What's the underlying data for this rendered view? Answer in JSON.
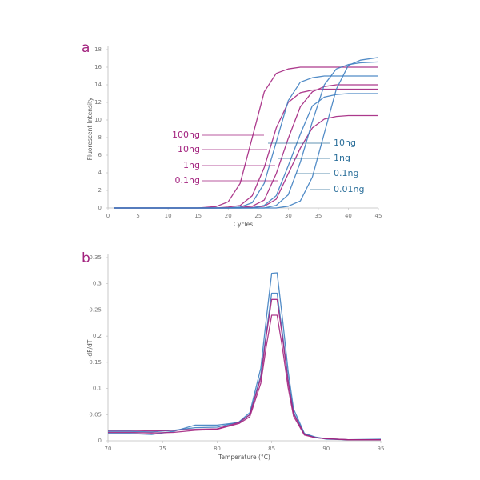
{
  "chart_data": [
    {
      "type": "line",
      "panel_label": "a",
      "x_label": "Cycles",
      "y_label": "Fluorescent Intensity",
      "xlim": [
        0,
        45
      ],
      "xticks": [
        0,
        5,
        10,
        15,
        20,
        25,
        30,
        35,
        40,
        45
      ],
      "ylim": [
        0,
        18
      ],
      "yticks": [
        0,
        2,
        4,
        6,
        8,
        10,
        12,
        14,
        16,
        18
      ],
      "grid": false,
      "x": [
        1,
        10,
        15,
        18,
        20,
        22,
        24,
        26,
        28,
        30,
        32,
        34,
        36,
        38,
        40,
        42,
        45
      ],
      "series": [
        {
          "color": "#a3237f",
          "values": [
            0,
            0,
            0,
            0.16,
            0.7,
            2.8,
            8,
            13.2,
            15.3,
            15.8,
            16,
            16,
            16,
            16,
            16,
            16,
            16
          ]
        },
        {
          "color": "#a3237f",
          "values": [
            0,
            0,
            0,
            0,
            0.1,
            0.28,
            1.4,
            4.6,
            9.1,
            12,
            13.1,
            13.4,
            13.5,
            13.5,
            13.5,
            13.5,
            13.5
          ]
        },
        {
          "color": "#a3237f",
          "values": [
            0,
            0,
            0,
            0,
            0,
            0.05,
            0.2,
            0.9,
            3.9,
            7.9,
            11.5,
            13.2,
            13.8,
            14,
            14,
            14,
            14
          ]
        },
        {
          "color": "#a3237f",
          "values": [
            0,
            0,
            0,
            0,
            0,
            0,
            0.05,
            0.2,
            1,
            3.9,
            6.8,
            9.1,
            10.1,
            10.4,
            10.5,
            10.5,
            10.5
          ]
        },
        {
          "color": "#3f7fc1",
          "values": [
            0,
            0,
            0,
            0,
            0,
            0.1,
            0.6,
            2.8,
            7.5,
            12.2,
            14.3,
            14.8,
            15,
            15,
            15,
            15,
            15
          ]
        },
        {
          "color": "#3f7fc1",
          "values": [
            0,
            0,
            0,
            0,
            0,
            0,
            0,
            0.3,
            1.4,
            4.8,
            8.4,
            11.6,
            12.6,
            12.9,
            13,
            13,
            13
          ]
        },
        {
          "color": "#3f7fc1",
          "values": [
            0,
            0,
            0,
            0,
            0,
            0,
            0,
            0,
            0.3,
            1.5,
            5.2,
            9.8,
            14,
            15.8,
            16.3,
            16.5,
            16.6
          ]
        },
        {
          "color": "#3f7fc1",
          "values": [
            0,
            0,
            0,
            0,
            0,
            0,
            0,
            0,
            0,
            0.2,
            0.8,
            3.5,
            8.5,
            13.5,
            16.2,
            16.8,
            17.1
          ]
        }
      ],
      "annotations": [
        {
          "text": "100ng",
          "color": "#a3237f"
        },
        {
          "text": "10ng",
          "color": "#a3237f"
        },
        {
          "text": "1ng",
          "color": "#a3237f"
        },
        {
          "text": "0.1ng",
          "color": "#a3237f"
        },
        {
          "text": "10ng",
          "color": "#2b6f9a"
        },
        {
          "text": "1ng",
          "color": "#2b6f9a"
        },
        {
          "text": "0.1ng",
          "color": "#2b6f9a"
        },
        {
          "text": "0.01ng",
          "color": "#2b6f9a"
        }
      ]
    },
    {
      "type": "line",
      "panel_label": "b",
      "x_label": "Temperature (°C)",
      "y_label": "-dF/dT",
      "xlim": [
        70,
        95
      ],
      "xticks": [
        70,
        75,
        80,
        85,
        90,
        95
      ],
      "ylim": [
        0,
        0.35
      ],
      "yticks": [
        0,
        0.05,
        0.1,
        0.15,
        0.2,
        0.25,
        0.3,
        0.35
      ],
      "grid": false,
      "x": [
        70,
        72,
        74,
        76,
        78,
        80,
        82,
        83,
        84,
        84.5,
        85,
        85.5,
        86,
        86.5,
        87,
        88,
        89,
        90,
        92,
        95
      ],
      "series": [
        {
          "color": "#3f7fc1",
          "values": [
            0.018,
            0.018,
            0.017,
            0.02,
            0.025,
            0.026,
            0.036,
            0.054,
            0.139,
            0.232,
            0.32,
            0.321,
            0.232,
            0.134,
            0.061,
            0.014,
            0.007,
            0.004,
            0.002,
            0.002
          ]
        },
        {
          "color": "#3f7fc1",
          "values": [
            0.014,
            0.014,
            0.012,
            0.018,
            0.03,
            0.03,
            0.035,
            0.05,
            0.125,
            0.206,
            0.282,
            0.282,
            0.204,
            0.118,
            0.054,
            0.013,
            0.007,
            0.003,
            0.002,
            0.003
          ]
        },
        {
          "color": "#a3237f",
          "values": [
            0.02,
            0.02,
            0.019,
            0.02,
            0.022,
            0.023,
            0.035,
            0.05,
            0.12,
            0.2,
            0.27,
            0.27,
            0.197,
            0.114,
            0.052,
            0.012,
            0.006,
            0.004,
            0.002,
            0.002
          ]
        },
        {
          "color": "#a3237f",
          "values": [
            0.016,
            0.016,
            0.015,
            0.016,
            0.02,
            0.022,
            0.033,
            0.046,
            0.11,
            0.18,
            0.24,
            0.24,
            0.176,
            0.102,
            0.047,
            0.011,
            0.006,
            0.004,
            0.002,
            0.002
          ]
        }
      ]
    }
  ]
}
